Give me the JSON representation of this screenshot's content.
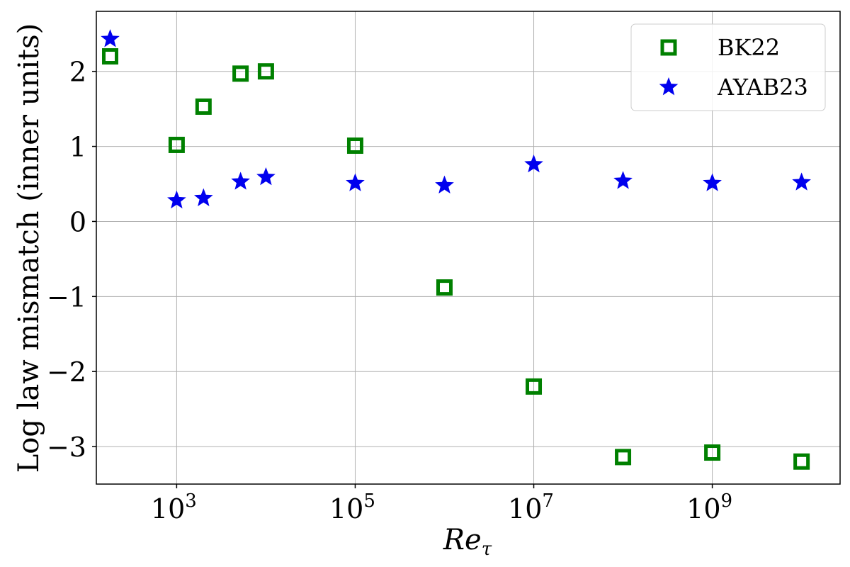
{
  "chart_data": {
    "type": "scatter",
    "title": "",
    "xlabel": "Re",
    "xlabel_subscript": "τ",
    "ylabel": "Log law mismatch (inner units)",
    "xscale": "log",
    "xlim": [
      126,
      27000000000
    ],
    "ylim": [
      -3.5,
      2.8
    ],
    "xticks": [
      {
        "value": 1000,
        "base": "10",
        "exp": "3"
      },
      {
        "value": 100000,
        "base": "10",
        "exp": "5"
      },
      {
        "value": 10000000,
        "base": "10",
        "exp": "7"
      },
      {
        "value": 1000000000,
        "base": "10",
        "exp": "9"
      }
    ],
    "yticks": [
      {
        "value": 2,
        "label": "2"
      },
      {
        "value": 1,
        "label": "1"
      },
      {
        "value": 0,
        "label": "0"
      },
      {
        "value": -1,
        "label": "−1"
      },
      {
        "value": -2,
        "label": "−2"
      },
      {
        "value": -3,
        "label": "−3"
      }
    ],
    "grid": true,
    "legend_position": "top-right",
    "series": [
      {
        "name": "BK22",
        "marker": "square-open",
        "color": "#008000",
        "x": [
          180,
          1000,
          2000,
          5200,
          10000,
          100000,
          1000000,
          10000000,
          100000000,
          1000000000,
          10000000000
        ],
        "y": [
          2.2,
          1.02,
          1.53,
          1.97,
          2.0,
          1.01,
          -0.88,
          -2.2,
          -3.14,
          -3.08,
          -3.2
        ]
      },
      {
        "name": "AYAB23",
        "marker": "star",
        "color": "#0000ee",
        "x": [
          180,
          1000,
          2000,
          5200,
          10000,
          100000,
          1000000,
          10000000,
          100000000,
          1000000000,
          10000000000
        ],
        "y": [
          2.43,
          0.28,
          0.31,
          0.53,
          0.59,
          0.51,
          0.48,
          0.76,
          0.54,
          0.51,
          0.52
        ]
      }
    ]
  }
}
